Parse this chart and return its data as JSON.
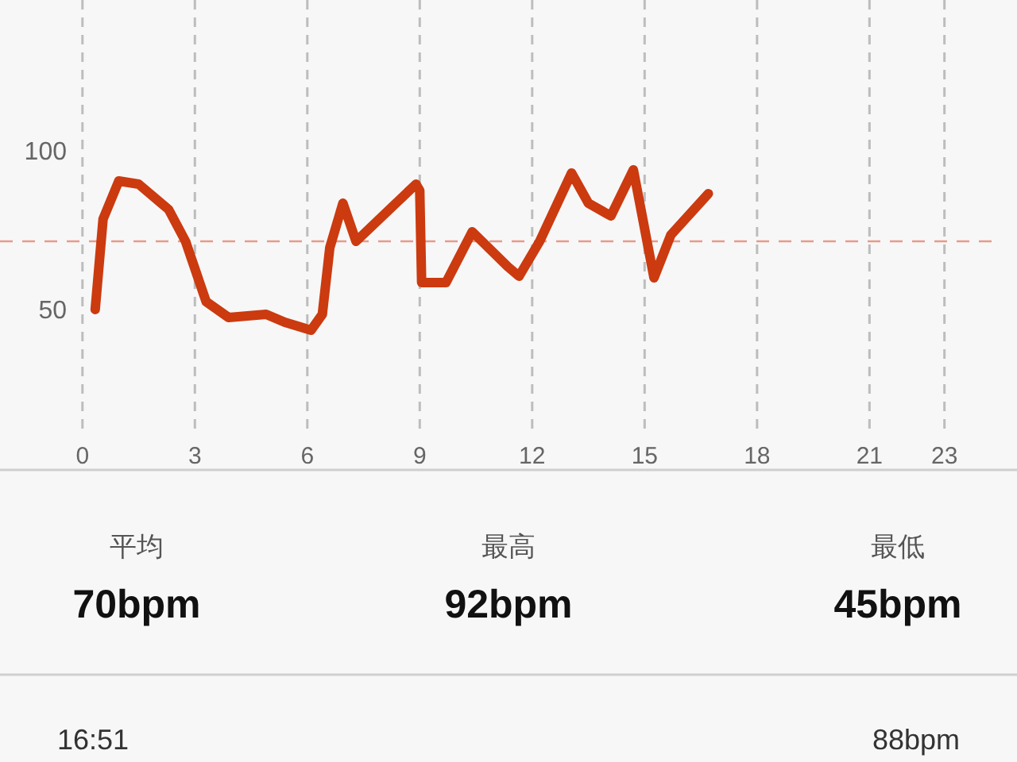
{
  "chart_data": {
    "type": "line",
    "x": [
      0.34,
      0.55,
      0.97,
      1.5,
      2.3,
      2.75,
      3.3,
      3.9,
      4.9,
      5.4,
      6.1,
      6.4,
      6.6,
      6.95,
      7.3,
      8.9,
      9.0,
      9.05,
      9.7,
      10.4,
      11.35,
      11.65,
      12.2,
      13.05,
      13.5,
      14.1,
      14.7,
      15.25,
      15.7,
      16.7
    ],
    "series": [
      {
        "color": "#cc3a10",
        "values": [
          50.5,
          79,
          91,
          90,
          82,
          72,
          53,
          48,
          49,
          46.5,
          44,
          49,
          70,
          84,
          72,
          90,
          88,
          59,
          59,
          75,
          64,
          61,
          72,
          93.5,
          84,
          80,
          94.5,
          60.5,
          74,
          87
        ]
      }
    ],
    "xlim": [
      -2.2,
      24.3
    ],
    "ylim": [
      0,
      148
    ],
    "xticks": [
      0,
      3,
      6,
      9,
      12,
      15,
      18,
      21,
      23
    ],
    "yticks": [
      50,
      100
    ],
    "grid": "x",
    "line_style": "solid",
    "marker": "none",
    "ref_lines": [
      {
        "axis": "y",
        "value": 72,
        "color": "#e89a8a",
        "line_style": "dashed"
      }
    ],
    "annotations": [
      "平均",
      "70bpm",
      "最高",
      "92bpm",
      "最低",
      "45bpm",
      "16:51",
      "88bpm"
    ]
  }
}
